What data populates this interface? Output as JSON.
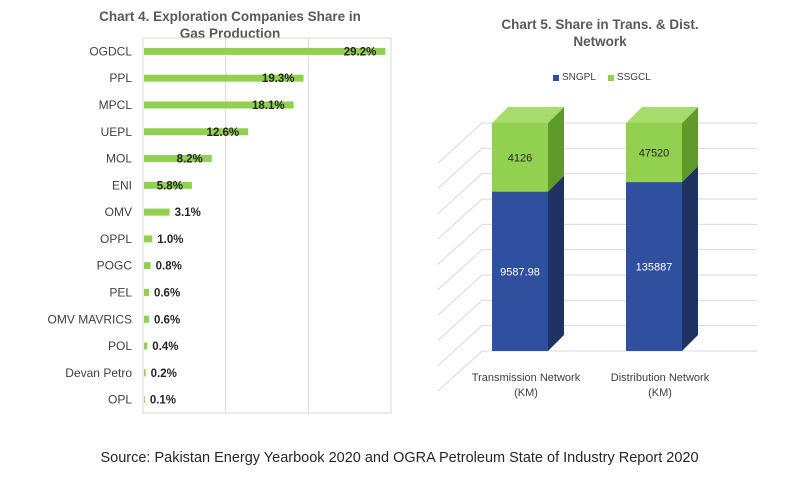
{
  "chart_data": [
    {
      "type": "bar",
      "orientation": "horizontal",
      "title": "Chart 4. Exploration Companies Share in\nGas Production",
      "categories": [
        "OGDCL",
        "PPL",
        "MPCL",
        "UEPL",
        "MOL",
        "ENI",
        "OMV",
        "OPPL",
        "POGC",
        "PEL",
        "OMV MAVRICS",
        "POL",
        "Devan Petro",
        "OPL"
      ],
      "values": [
        29.2,
        19.3,
        18.1,
        12.6,
        8.2,
        5.8,
        3.1,
        1.0,
        0.8,
        0.6,
        0.6,
        0.4,
        0.2,
        0.1
      ],
      "data_labels": [
        "29.2%",
        "19.3%",
        "18.1%",
        "12.6%",
        "8.2%",
        "5.8%",
        "3.1%",
        "1.0%",
        "0.8%",
        "0.6%",
        "0.6%",
        "0.4%",
        "0.2%",
        "0.1%"
      ],
      "xlim": [
        0,
        30
      ],
      "grid": true,
      "bar_color": "#92D050"
    },
    {
      "type": "bar",
      "stacked": true,
      "three_d": true,
      "title": "Chart 5. Share in Trans. & Dist.\nNetwork",
      "categories": [
        "Transmission Network (KM)",
        "Distribution Network (KM)"
      ],
      "series": [
        {
          "name": "SNGPL",
          "values": [
            9587.98,
            135887
          ],
          "color": "#2F4F9F"
        },
        {
          "name": "SSGCL",
          "values": [
            4126,
            47520
          ],
          "color": "#92D050"
        }
      ],
      "data_labels": [
        [
          "9587.98",
          "135887"
        ],
        [
          "4126",
          "47520"
        ]
      ],
      "legend_position": "top",
      "grid": true
    }
  ],
  "source": "Source: Pakistan Energy Yearbook 2020 and OGRA Petroleum State of Industry Report 2020"
}
